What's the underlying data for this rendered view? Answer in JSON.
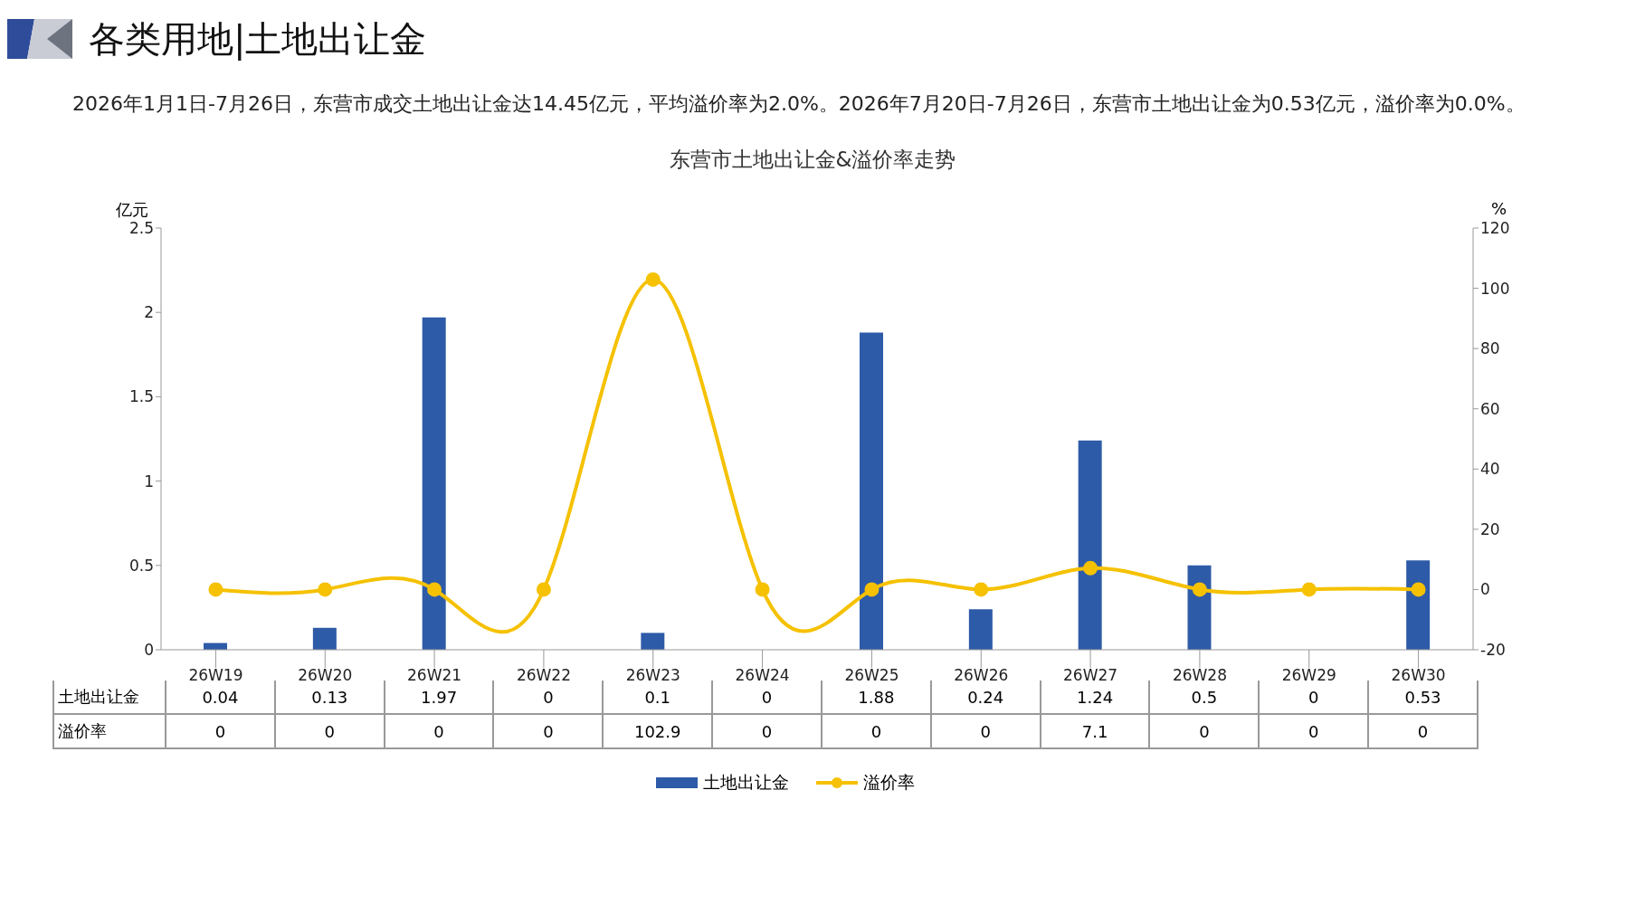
{
  "chart_data": {
    "type": "bar",
    "title": "东营市土地出让金&溢价率走势",
    "annotations": [
      "各类用地|土地出让金",
      "2026年1月1日-7月26日，东营市成交土地出让金达14.45亿元，平均溢价率为2.0%。2026年7月20日-7月26日，东营市土地出让金为0.53亿元，溢价率为0.0%。"
    ],
    "ylabel": "亿元",
    "y2label": "%",
    "categories": [
      "26W19",
      "26W20",
      "26W21",
      "26W22",
      "26W23",
      "26W24",
      "26W25",
      "26W26",
      "26W27",
      "26W28",
      "26W29",
      "26W30"
    ],
    "series": [
      {
        "name": "土地出让金",
        "color": "#2e5ba8",
        "values": [
          0.04,
          0.13,
          1.97,
          0,
          0.1,
          0,
          1.88,
          0.24,
          1.24,
          0.5,
          0,
          0.53
        ]
      },
      {
        "name": "溢价率",
        "type": "line",
        "axis": "y2",
        "color": "#f5c100",
        "marker": "circle",
        "values": [
          0,
          0,
          0,
          0,
          102.9,
          0,
          0,
          0,
          7.1,
          0,
          0,
          0
        ]
      }
    ],
    "ylim": [
      0,
      2.5
    ],
    "yticks": [
      0,
      0.5,
      1,
      1.5,
      2,
      2.5
    ],
    "y2lim": [
      -20,
      120
    ],
    "y2ticks": [
      -20,
      0,
      20,
      40,
      60,
      80,
      100,
      120
    ],
    "data_labels": true,
    "legend": "bottom"
  }
}
